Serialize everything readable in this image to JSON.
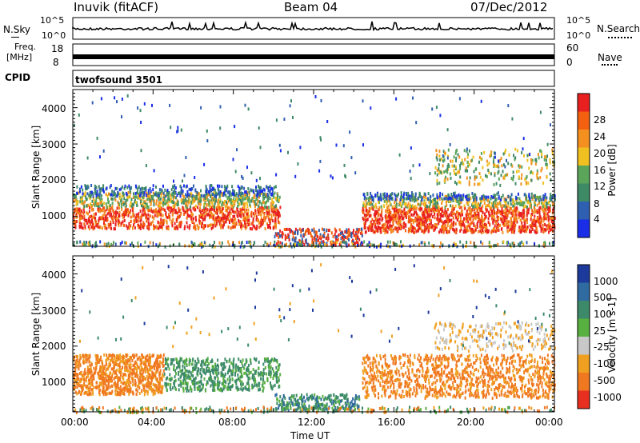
{
  "header": {
    "station": "Inuvik (fitACF)",
    "beam": "Beam 04",
    "date": "07/Dec/2012"
  },
  "colors": {
    "power_scale": [
      "#1a2ee8",
      "#2f5fb0",
      "#3f8a66",
      "#5aa55a",
      "#f0c020",
      "#f39020",
      "#f36010",
      "#e82020"
    ],
    "velocity_scale": [
      "#1c3a9c",
      "#2f6aa0",
      "#3c8a6a",
      "#58b040",
      "#c8c8c8",
      "#f0a020",
      "#f07820",
      "#e83020"
    ]
  },
  "chart_data": [
    {
      "type": "line",
      "name": "noise-panel",
      "left_label": "N.Sky",
      "right_label": "N.Search",
      "left_ticks": [
        "10^5",
        "10^0"
      ],
      "right_ticks": [
        "10^5",
        "10^0"
      ],
      "legend_marker_left": "solid",
      "legend_marker_right": "dotted"
    },
    {
      "type": "line",
      "name": "frequency-panel",
      "left_label_lines": [
        "Freq.",
        "[MHz]"
      ],
      "left_ticks": [
        "18",
        "8"
      ],
      "right_label": "Nave",
      "right_ticks": [
        "60",
        "0"
      ],
      "legend_marker_right": "dotted"
    },
    {
      "type": "table",
      "name": "cpid-panel",
      "label": "CPID",
      "value": "twofsound 3501"
    },
    {
      "type": "heatmap",
      "name": "power-panel",
      "ylabel": "Slant Range [km]",
      "yticks": [
        1000,
        2000,
        3000,
        4000
      ],
      "ylim": [
        180,
        4500
      ],
      "xlim": [
        0,
        24
      ],
      "colorbar_label": "Power [dB]",
      "colorbar_ticks": [
        "4",
        "8",
        "12",
        "16",
        "20",
        "24",
        "28"
      ]
    },
    {
      "type": "heatmap",
      "name": "velocity-panel",
      "ylabel": "Slant Range [km]",
      "yticks": [
        1000,
        2000,
        3000,
        4000
      ],
      "ylim": [
        180,
        4500
      ],
      "xlim": [
        0,
        24
      ],
      "xticks": [
        "00:00",
        "04:00",
        "08:00",
        "12:00",
        "16:00",
        "20:00",
        "00:00"
      ],
      "xlabel": "Time UT",
      "colorbar_label": "Velocity [m s-1]",
      "colorbar_ticks": [
        "1000",
        "500",
        "100",
        "25",
        "-25",
        "-100",
        "-500",
        "-1000"
      ]
    }
  ]
}
